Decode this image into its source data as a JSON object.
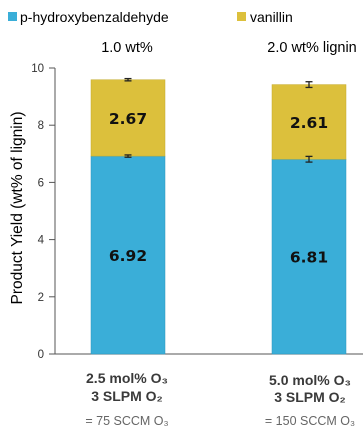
{
  "colors": {
    "series1": "#3aaed8",
    "series2": "#dcc03c",
    "errorbar": "#222222",
    "axis": "#555555"
  },
  "legend": [
    {
      "label": "p-hydroxybenzaldehyde",
      "color": "#3aaed8"
    },
    {
      "label": "vanillin",
      "color": "#dcc03c"
    }
  ],
  "chart_data": {
    "type": "bar",
    "stacked": true,
    "ylabel": "Product Yield (wt% of lignin)",
    "ylim": [
      0,
      10
    ],
    "yticks": [
      0,
      2,
      4,
      6,
      8,
      10
    ],
    "grid": false,
    "legend_position": "top",
    "bars": [
      {
        "note": "1.0 wt%",
        "condition": [
          "2.5 mol% O₃",
          "3 SLPM O₂",
          "= 75 SCCM O₃"
        ],
        "p_hydroxybenzaldehyde": 6.92,
        "vanillin": 2.67,
        "p_hydroxybenzaldehyde_error": 0.04,
        "total_error": 0.04
      },
      {
        "note": "2.0 wt% lignin",
        "condition": [
          "5.0 mol% O₃",
          "3 SLPM O₂",
          "= 150 SCCM O₃"
        ],
        "p_hydroxybenzaldehyde": 6.81,
        "vanillin": 2.61,
        "p_hydroxybenzaldehyde_error": 0.1,
        "total_error": 0.1
      }
    ],
    "series": [
      {
        "name": "p-hydroxybenzaldehyde",
        "values": [
          6.92,
          6.81
        ],
        "labels": [
          "6.92",
          "6.81"
        ]
      },
      {
        "name": "vanillin",
        "values": [
          2.67,
          2.61
        ],
        "labels": [
          "2.67",
          "2.61"
        ]
      }
    ]
  }
}
